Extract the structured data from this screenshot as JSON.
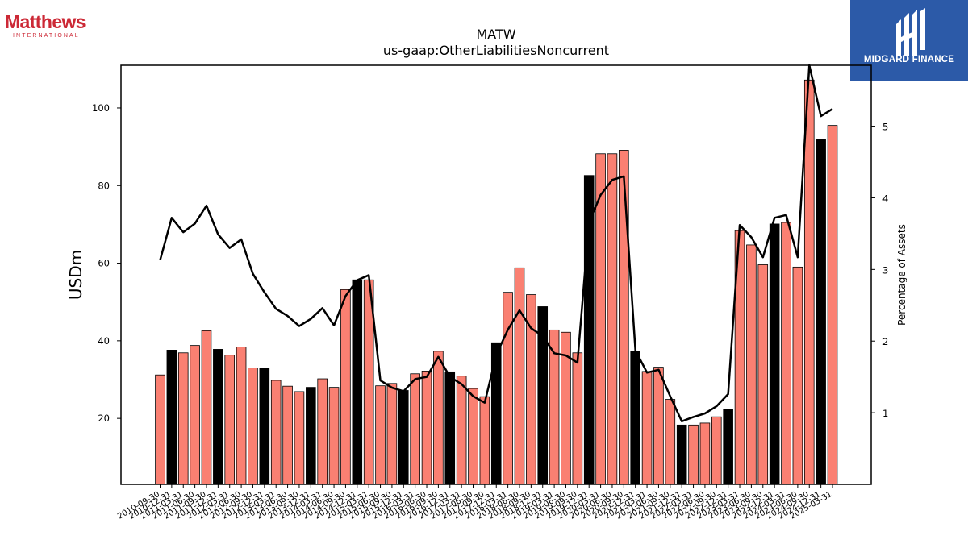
{
  "logos": {
    "left_name": "Matthews",
    "left_sub": "INTERNATIONAL",
    "right_name": "MIDGARD FINANCE",
    "right_color": "#2c5aa8",
    "left_color": "#cc2936"
  },
  "chart_data": {
    "type": "bar",
    "title": "MATW",
    "subtitle": "us-gaap:OtherLiabilitiesNoncurrent",
    "ylabel": "USDm",
    "y2label": "Percentage of Assets",
    "ylim": [
      3,
      111
    ],
    "y2lim": [
      0,
      5.85
    ],
    "yticks": [
      20,
      40,
      60,
      80,
      100
    ],
    "y2ticks": [
      1,
      2,
      3,
      4,
      5
    ],
    "colors": {
      "bar_default": "#fa8072",
      "bar_highlight": "#000000",
      "line": "#000000"
    },
    "grid": false,
    "x": [
      "2010-09-30",
      "2010-12-31",
      "2011-03-31",
      "2011-06-30",
      "2011-09-30",
      "2011-12-31",
      "2012-03-31",
      "2012-06-30",
      "2012-09-30",
      "2012-12-31",
      "2013-03-31",
      "2013-06-30",
      "2013-09-30",
      "2013-12-31",
      "2014-03-31",
      "2014-06-30",
      "2014-09-30",
      "2014-12-31",
      "2015-03-31",
      "2015-06-30",
      "2015-09-30",
      "2015-12-31",
      "2016-03-31",
      "2016-06-30",
      "2016-09-30",
      "2016-12-31",
      "2017-03-31",
      "2017-06-30",
      "2017-09-30",
      "2017-12-31",
      "2018-03-31",
      "2018-06-30",
      "2018-09-30",
      "2018-12-31",
      "2019-03-31",
      "2019-06-30",
      "2019-09-30",
      "2019-12-31",
      "2020-03-31",
      "2020-06-30",
      "2020-09-30",
      "2020-12-31",
      "2021-03-31",
      "2021-06-30",
      "2021-09-30",
      "2021-12-31",
      "2022-03-31",
      "2022-06-30",
      "2022-09-30",
      "2022-12-31",
      "2023-03-31",
      "2023-06-30",
      "2023-09-30",
      "2023-12-31",
      "2024-03-31",
      "2024-06-30",
      "2024-09-30",
      "2024-12-31",
      "2025-03-31"
    ],
    "series": [
      {
        "kind": "bar",
        "values": [
          31.2,
          37.6,
          36.9,
          38.8,
          42.6,
          37.8,
          36.3,
          38.4,
          33.0,
          33.0,
          29.8,
          28.3,
          26.9,
          28.0,
          30.2,
          28.0,
          53.2,
          55.7,
          55.7,
          28.4,
          29.0,
          27.2,
          31.5,
          32.2,
          37.3,
          32.0,
          30.9,
          27.7,
          25.6,
          39.5,
          52.5,
          58.8,
          51.9,
          48.8,
          42.8,
          42.2,
          36.9,
          82.6,
          88.2,
          88.2,
          89.1,
          37.3,
          32.1,
          33.2,
          24.9,
          18.3,
          18.3,
          18.8,
          20.4,
          22.4,
          68.4,
          64.7,
          59.6,
          70.1,
          70.5,
          59.0,
          107.2,
          92.0,
          95.5
        ],
        "highlight": [
          false,
          true,
          false,
          false,
          false,
          true,
          false,
          false,
          false,
          true,
          false,
          false,
          false,
          true,
          false,
          false,
          false,
          true,
          false,
          false,
          false,
          true,
          false,
          false,
          false,
          true,
          false,
          false,
          false,
          true,
          false,
          false,
          false,
          true,
          false,
          false,
          false,
          true,
          false,
          false,
          false,
          true,
          false,
          false,
          false,
          true,
          false,
          false,
          false,
          true,
          false,
          false,
          false,
          true,
          false,
          false,
          false,
          true,
          false
        ]
      },
      {
        "kind": "line",
        "axis": "y2",
        "values": [
          3.13,
          3.72,
          3.52,
          3.64,
          3.89,
          3.49,
          3.3,
          3.42,
          2.94,
          2.68,
          2.45,
          2.35,
          2.21,
          2.31,
          2.46,
          2.22,
          2.63,
          2.85,
          2.92,
          1.45,
          1.35,
          1.3,
          1.47,
          1.5,
          1.78,
          1.5,
          1.4,
          1.23,
          1.14,
          1.81,
          2.16,
          2.43,
          2.18,
          2.07,
          1.83,
          1.8,
          1.7,
          3.66,
          4.04,
          4.25,
          4.3,
          1.87,
          1.56,
          1.6,
          1.23,
          0.88,
          0.94,
          0.99,
          1.09,
          1.26,
          3.62,
          3.45,
          3.17,
          3.72,
          3.76,
          3.17,
          5.85,
          5.14,
          5.24
        ]
      }
    ]
  }
}
